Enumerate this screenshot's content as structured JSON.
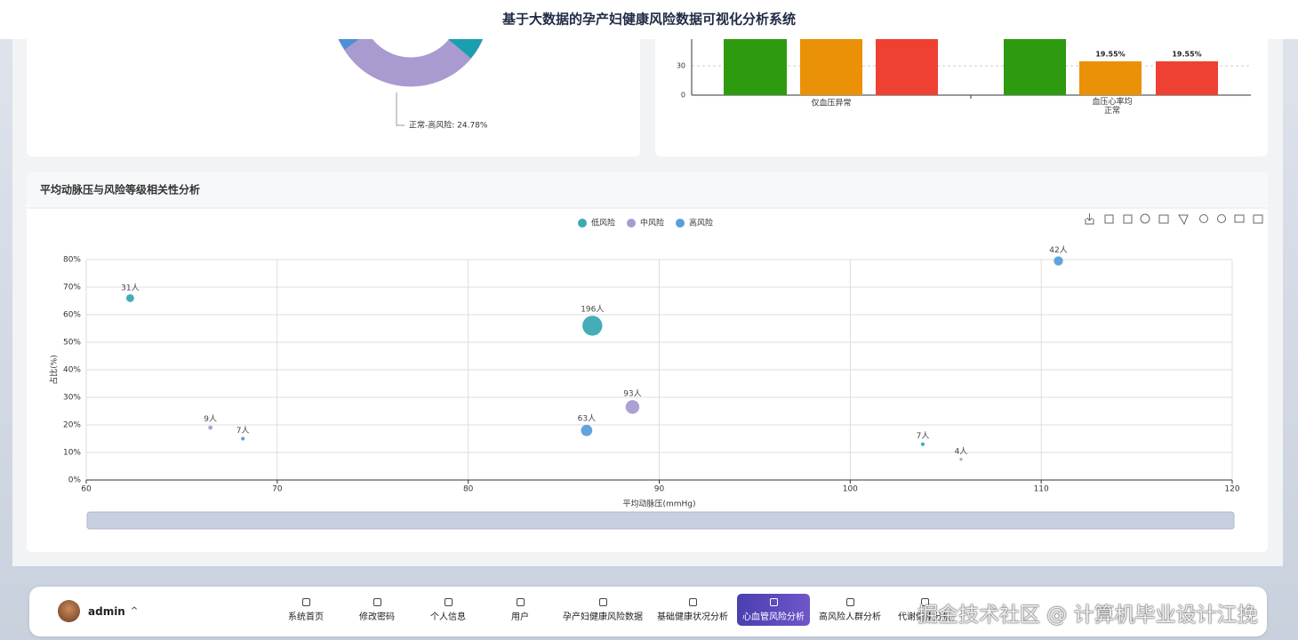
{
  "header": {
    "title": "基于大数据的孕产妇健康风险数据可视化分析系统"
  },
  "donut_panel": {
    "label": "正常-高风险: 24.78%"
  },
  "bar_panel": {
    "yticks": [
      "0",
      "30"
    ],
    "categories": [
      "仅血压异常",
      "血压心率均正常"
    ],
    "value_labels": [
      "19.55%",
      "19.55%"
    ]
  },
  "scatter_panel": {
    "title": "平均动脉压与风险等级相关性分析"
  },
  "chart_data": {
    "type": "scatter",
    "x_label": "平均动脉压(mmHg)",
    "y_label": "占比(%)",
    "xlim": [
      60,
      120
    ],
    "xticks": [
      60,
      70,
      80,
      90,
      100,
      110,
      120
    ],
    "ylim": [
      0,
      80
    ],
    "yticks": [
      {
        "value": 0,
        "label": "0%"
      },
      {
        "value": 10,
        "label": "10%"
      },
      {
        "value": 20,
        "label": "20%"
      },
      {
        "value": 30,
        "label": "30%"
      },
      {
        "value": 40,
        "label": "40%"
      },
      {
        "value": 50,
        "label": "50%"
      },
      {
        "value": 60,
        "label": "60%"
      },
      {
        "value": 70,
        "label": "70%"
      },
      {
        "value": 80,
        "label": "80%"
      }
    ],
    "grid": true,
    "series": [
      {
        "name": "低风险",
        "color": "#3aa9b4",
        "x": [
          62.3,
          86.5,
          103.8
        ],
        "values": [
          66,
          56,
          13
        ],
        "sizes": [
          31,
          196,
          7
        ],
        "size_labels": [
          "31人",
          "196人",
          "7人"
        ]
      },
      {
        "name": "中风险",
        "color": "#a99bd0",
        "x": [
          66.5,
          88.6,
          105.8
        ],
        "values": [
          19,
          26.5,
          7.5
        ],
        "sizes": [
          9,
          93,
          4
        ],
        "size_labels": [
          "9人",
          "93人",
          "4人"
        ]
      },
      {
        "name": "高风险",
        "color": "#5b9edb",
        "x": [
          68.2,
          86.2,
          110.9
        ],
        "values": [
          15,
          18,
          79.5
        ],
        "sizes": [
          7,
          63,
          42
        ],
        "size_labels": [
          "7人",
          "63人",
          "42人"
        ]
      }
    ]
  },
  "nav": {
    "user": "admin",
    "items": [
      "系统首页",
      "修改密码",
      "个人信息",
      "用户",
      "孕产妇健康风险数据",
      "基础健康状况分析",
      "心血管风险分析",
      "高风险人群分析",
      "代谢健康分析"
    ],
    "active": 6
  },
  "watermark": "掘金技术社区 @ 计算机毕业设计江挽"
}
